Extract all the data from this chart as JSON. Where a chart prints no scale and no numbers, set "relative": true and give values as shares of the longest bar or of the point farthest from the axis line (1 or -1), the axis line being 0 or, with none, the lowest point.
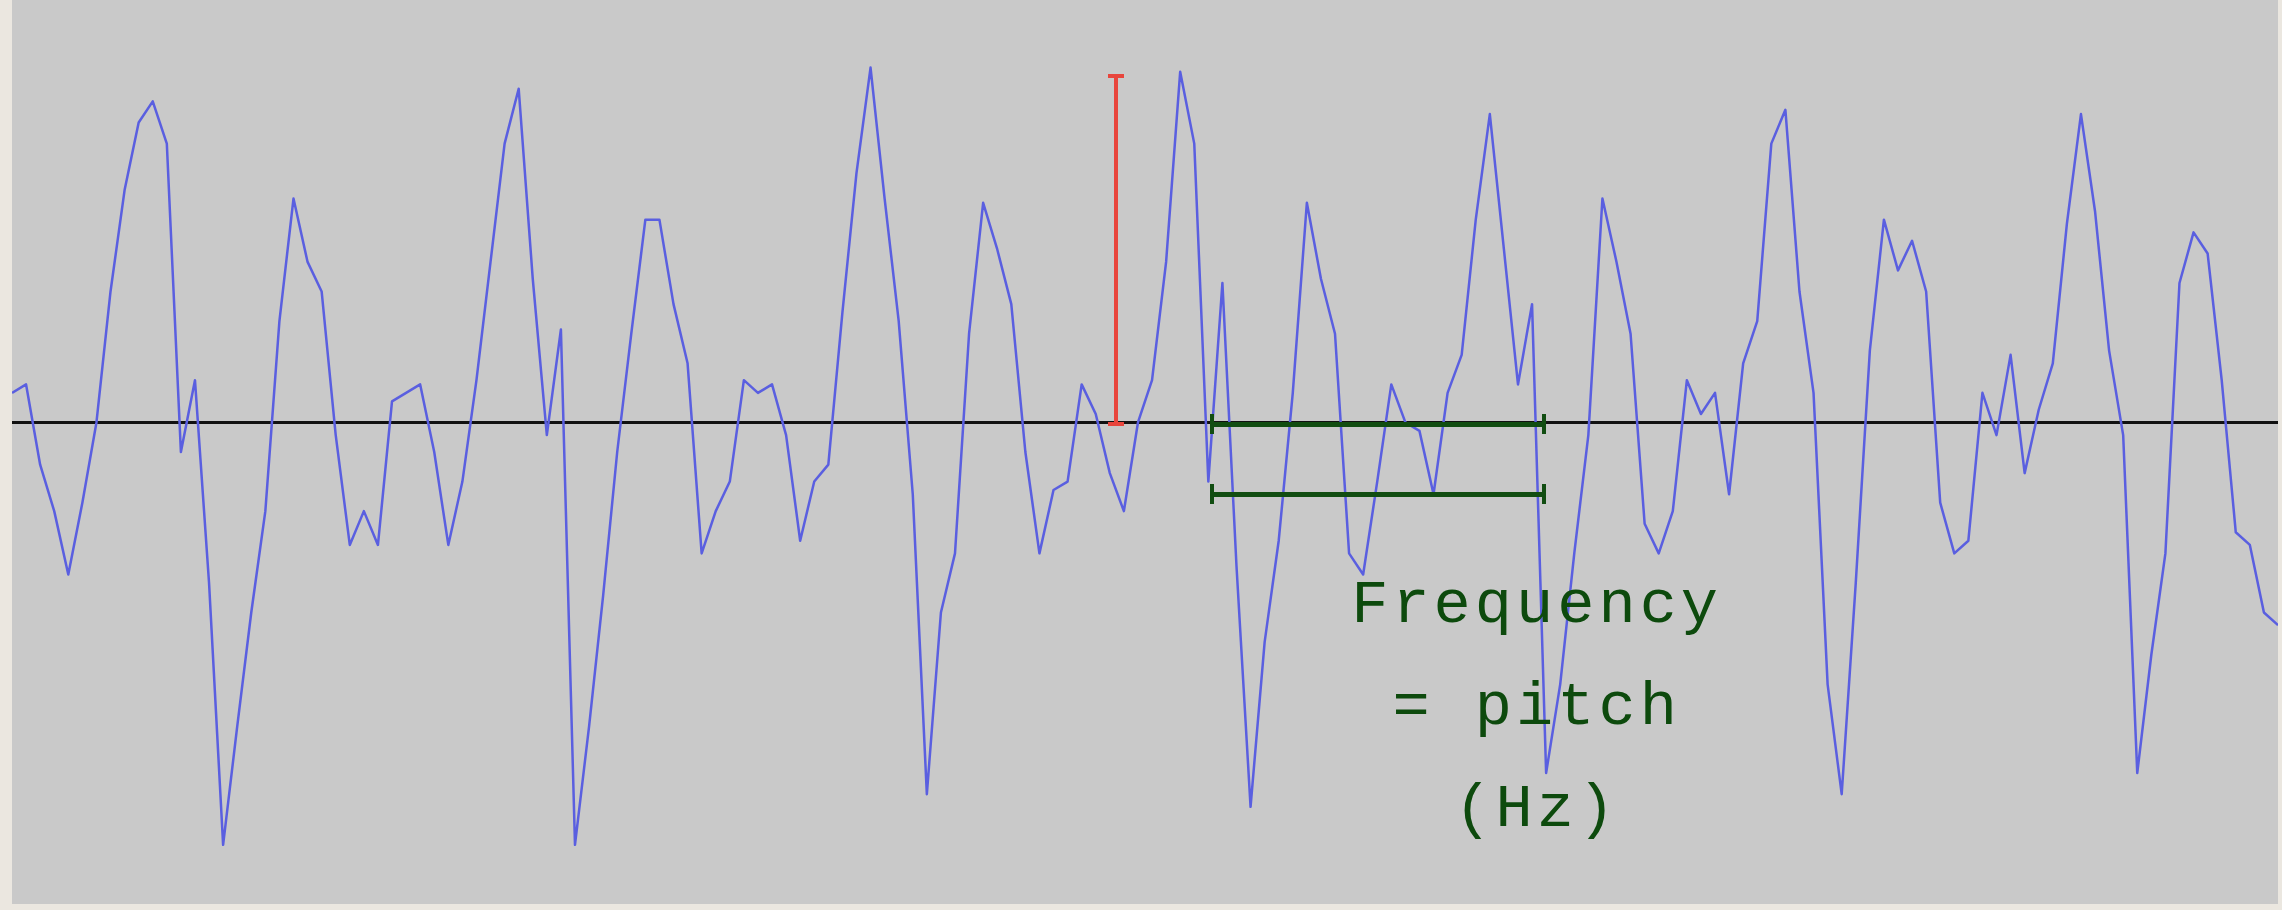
{
  "chart_data": {
    "type": "line",
    "relative": true,
    "marker": "none",
    "legend": false,
    "annotations": [
      "Frequency = pitch (Hz)"
    ],
    "categories": [
      null,
      null,
      null,
      null,
      null,
      null,
      null,
      null,
      null,
      null,
      null,
      null,
      null,
      null,
      null,
      null,
      null,
      null,
      null,
      null,
      null,
      null,
      null,
      null,
      null,
      null,
      null,
      null,
      null,
      null,
      null,
      null,
      null,
      null,
      null,
      null,
      null,
      null,
      null,
      null,
      null,
      null,
      null,
      null,
      null,
      null,
      null,
      null,
      null,
      null,
      null,
      null,
      null,
      null,
      null,
      null,
      null,
      null,
      null,
      null,
      null,
      null,
      null,
      null,
      null,
      null,
      null,
      null,
      null,
      null,
      null,
      null,
      null,
      null,
      null,
      null,
      null,
      null,
      null,
      null,
      null,
      null,
      null,
      null,
      null,
      null,
      null,
      null,
      null,
      null,
      null,
      null,
      null,
      null,
      null,
      null,
      null,
      null,
      null,
      null,
      null,
      null,
      null,
      null,
      null,
      null,
      null,
      null,
      null,
      null,
      null,
      null,
      null,
      null,
      null,
      null,
      null,
      null,
      null,
      null,
      null,
      null,
      null,
      null,
      null,
      null,
      null,
      null,
      null,
      null,
      null,
      null,
      null,
      null,
      null,
      null,
      null,
      null,
      null,
      null,
      null,
      null,
      null,
      null,
      null,
      null,
      null,
      null,
      null,
      null,
      null,
      null,
      null,
      null,
      null,
      null,
      null,
      null,
      null,
      null,
      null,
      null
    ],
    "series": [
      {
        "color": "#5a5fe0",
        "values": [
          0.07,
          0.09,
          -0.1,
          -0.21,
          -0.36,
          -0.19,
          0,
          0.31,
          0.55,
          0.71,
          0.76,
          0.66,
          -0.07,
          0.1,
          -0.38,
          -1,
          -0.72,
          -0.45,
          -0.21,
          0.24,
          0.53,
          0.38,
          0.31,
          -0.03,
          -0.29,
          -0.21,
          -0.29,
          0.05,
          0.07,
          0.09,
          -0.07,
          -0.29,
          -0.14,
          0.1,
          0.38,
          0.66,
          0.79,
          0.34,
          -0.03,
          0.22,
          -1,
          -0.72,
          -0.41,
          -0.07,
          0.21,
          0.48,
          0.48,
          0.28,
          0.14,
          -0.31,
          -0.21,
          -0.14,
          0.1,
          0.07,
          0.09,
          -0.03,
          -0.28,
          -0.14,
          -0.1,
          0.26,
          0.59,
          0.84,
          0.53,
          0.24,
          -0.17,
          -0.88,
          -0.45,
          -0.31,
          0.21,
          0.52,
          0.41,
          0.28,
          -0.07,
          -0.31,
          -0.16,
          -0.14,
          0.09,
          0.02,
          -0.12,
          -0.21,
          0,
          0.1,
          0.38,
          0.83,
          0.66,
          -0.14,
          0.33,
          -0.34,
          -0.91,
          -0.52,
          -0.28,
          0.07,
          0.52,
          0.34,
          0.21,
          -0.31,
          -0.36,
          -0.14,
          0.09,
          0,
          -0.02,
          -0.17,
          0.07,
          0.16,
          0.48,
          0.73,
          0.41,
          0.09,
          0.28,
          -0.83,
          -0.62,
          -0.31,
          -0.03,
          0.53,
          0.38,
          0.21,
          -0.24,
          -0.31,
          -0.21,
          0.1,
          0.02,
          0.07,
          -0.17,
          0.14,
          0.24,
          0.66,
          0.74,
          0.31,
          0.07,
          -0.62,
          -0.88,
          -0.38,
          0.17,
          0.48,
          0.36,
          0.43,
          0.31,
          -0.19,
          -0.31,
          -0.28,
          0.07,
          -0.03,
          0.16,
          -0.12,
          0.03,
          0.14,
          0.47,
          0.73,
          0.5,
          0.17,
          -0.03,
          -0.83,
          -0.55,
          -0.31,
          0.33,
          0.45,
          0.4,
          0.1,
          -0.26,
          -0.29,
          -0.45,
          -0.48
        ]
      }
    ]
  }
}
